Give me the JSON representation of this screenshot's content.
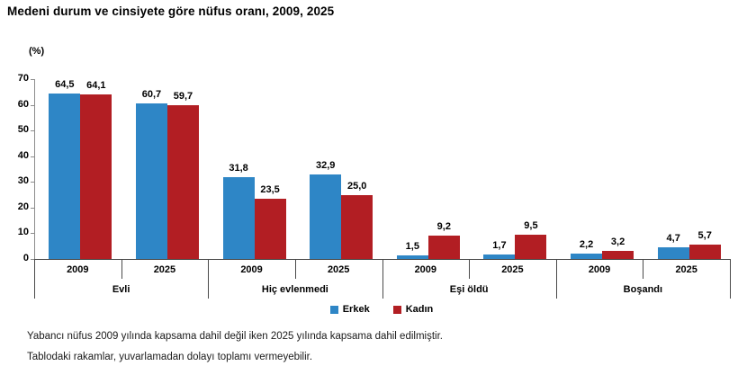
{
  "title": "Medeni durum ve cinsiyete göre nüfus oranı, 2009, 2025",
  "y_axis_unit": "(%)",
  "legend": {
    "items": [
      {
        "label": "Erkek",
        "color": "#2E86C6"
      },
      {
        "label": "Kadın",
        "color": "#B21E23"
      }
    ]
  },
  "footnotes": [
    "Yabancı nüfus 2009 yılında kapsama dahil değil iken 2025 yılında kapsama dahil edilmiştir.",
    "Tablodaki rakamlar, yuvarlamadan dolayı toplamı vermeyebilir."
  ],
  "chart_data": {
    "type": "bar",
    "title": "Medeni durum ve cinsiyete göre nüfus oranı, 2009, 2025",
    "xlabel": "",
    "ylabel": "(%)",
    "ylim": [
      0,
      70
    ],
    "yticks": [
      0,
      10,
      20,
      30,
      40,
      50,
      60,
      70
    ],
    "grid": false,
    "legend_position": "bottom",
    "series_names": [
      "Erkek",
      "Kadın"
    ],
    "series_colors": [
      "#2E86C6",
      "#B21E23"
    ],
    "groups": [
      {
        "label": "Evli",
        "cells": [
          {
            "year": "2009",
            "values": [
              64.5,
              64.1
            ],
            "labels": [
              "64,5",
              "64,1"
            ]
          },
          {
            "year": "2025",
            "values": [
              60.7,
              59.7
            ],
            "labels": [
              "60,7",
              "59,7"
            ]
          }
        ]
      },
      {
        "label": "Hiç evlenmedi",
        "cells": [
          {
            "year": "2009",
            "values": [
              31.8,
              23.5
            ],
            "labels": [
              "31,8",
              "23,5"
            ]
          },
          {
            "year": "2025",
            "values": [
              32.9,
              25.0
            ],
            "labels": [
              "32,9",
              "25,0"
            ]
          }
        ]
      },
      {
        "label": "Eşi öldü",
        "cells": [
          {
            "year": "2009",
            "values": [
              1.5,
              9.2
            ],
            "labels": [
              "1,5",
              "9,2"
            ]
          },
          {
            "year": "2025",
            "values": [
              1.7,
              9.5
            ],
            "labels": [
              "1,7",
              "9,5"
            ]
          }
        ]
      },
      {
        "label": "Boşandı",
        "cells": [
          {
            "year": "2009",
            "values": [
              2.2,
              3.2
            ],
            "labels": [
              "2,2",
              "3,2"
            ]
          },
          {
            "year": "2025",
            "values": [
              4.7,
              5.7
            ],
            "labels": [
              "4,7",
              "5,7"
            ]
          }
        ]
      }
    ]
  }
}
